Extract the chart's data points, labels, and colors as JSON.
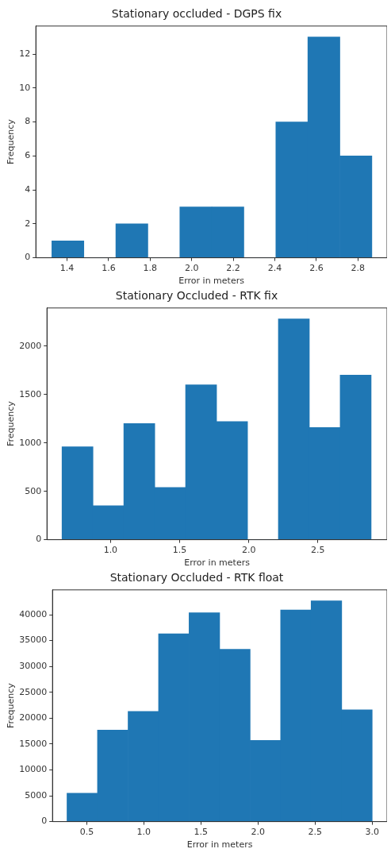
{
  "chart_data": [
    {
      "type": "histogram",
      "title": "Stationary occluded - DGPS fix",
      "xlabel": "Error in meters",
      "ylabel": "Frequency",
      "color": "#1f77b4",
      "bins": [
        1.327,
        1.481,
        1.635,
        1.789,
        1.943,
        2.097,
        2.251,
        2.405,
        2.559,
        2.713,
        2.867
      ],
      "values": [
        1,
        0,
        2,
        0,
        3,
        3,
        0,
        8,
        13,
        6
      ],
      "xlim": [
        1.25,
        2.94
      ],
      "xticks": [
        1.4,
        1.6,
        1.8,
        {
          "value": 2,
          "label": "2.0"
        },
        2.2,
        2.4,
        2.6,
        2.8
      ],
      "ylim": [
        0,
        13.65
      ],
      "yticks": [
        0,
        2,
        4,
        6,
        8,
        10,
        12
      ]
    },
    {
      "type": "histogram",
      "title": "Stationary Occluded - RTK fix",
      "xlabel": "Error in meters",
      "ylabel": "Frequency",
      "color": "#1f77b4",
      "bins": [
        0.649,
        0.873,
        1.096,
        1.32,
        1.543,
        1.767,
        1.991,
        2.214,
        2.438,
        2.661,
        2.885
      ],
      "values": [
        960,
        350,
        1200,
        540,
        1600,
        1220,
        0,
        2280,
        1160,
        1700
      ],
      "xlim": [
        0.54,
        3.0
      ],
      "xticks": [
        {
          "value": 1,
          "label": "1.0"
        },
        1.5,
        {
          "value": 2,
          "label": "2.0"
        },
        2.5
      ],
      "ylim": [
        0,
        2394
      ],
      "yticks": [
        0,
        500,
        1000,
        1500,
        2000
      ]
    },
    {
      "type": "histogram",
      "title": "Stationary Occluded - RTK float",
      "xlabel": "Error in meters",
      "ylabel": "Frequency",
      "color": "#1f77b4",
      "bins": [
        0.327,
        0.594,
        0.862,
        1.129,
        1.396,
        1.664,
        1.931,
        2.198,
        2.465,
        2.733,
        3.0
      ],
      "values": [
        5500,
        17700,
        21300,
        36300,
        40400,
        33300,
        15700,
        40900,
        42700,
        21600
      ],
      "xlim": [
        0.2,
        3.13
      ],
      "xticks": [
        0.5,
        {
          "value": 1,
          "label": "1.0"
        },
        1.5,
        {
          "value": 2,
          "label": "2.0"
        },
        2.5,
        {
          "value": 3,
          "label": "3.0"
        }
      ],
      "ylim": [
        0,
        44800
      ],
      "yticks": [
        0,
        5000,
        10000,
        15000,
        20000,
        25000,
        30000,
        35000,
        40000
      ]
    }
  ]
}
